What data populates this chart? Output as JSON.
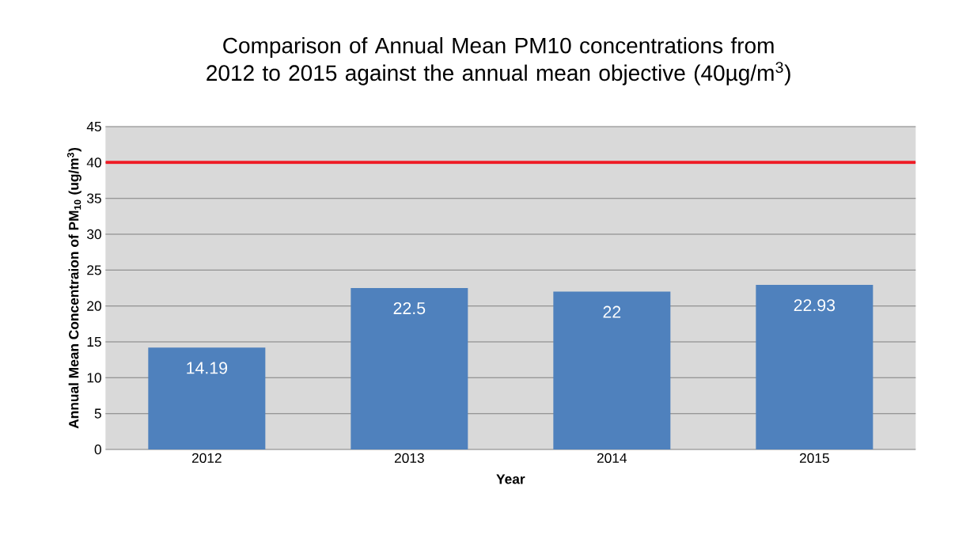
{
  "chart_data": {
    "type": "bar",
    "title": "Comparison of Annual Mean PM10 concentrations from 2012 to 2015 against the annual mean objective (40µg/m$^{3}$)",
    "xlabel": "Year",
    "ylabel": "Annual Mean Concentraion of PM$_{10}$ (ug/m$^{3}$)",
    "categories": [
      "2012",
      "2013",
      "2014",
      "2015"
    ],
    "values": [
      14.19,
      22.5,
      22,
      22.93
    ],
    "color": "#4f81bd",
    "data_labels": true,
    "ylim": [
      0,
      45
    ],
    "yticks": [
      0,
      5,
      10,
      15,
      20,
      25,
      30,
      35,
      40,
      45
    ],
    "grid": "y",
    "ref_lines": [
      {
        "axis": "y",
        "value": 40,
        "color": "#ee1c25"
      }
    ]
  }
}
